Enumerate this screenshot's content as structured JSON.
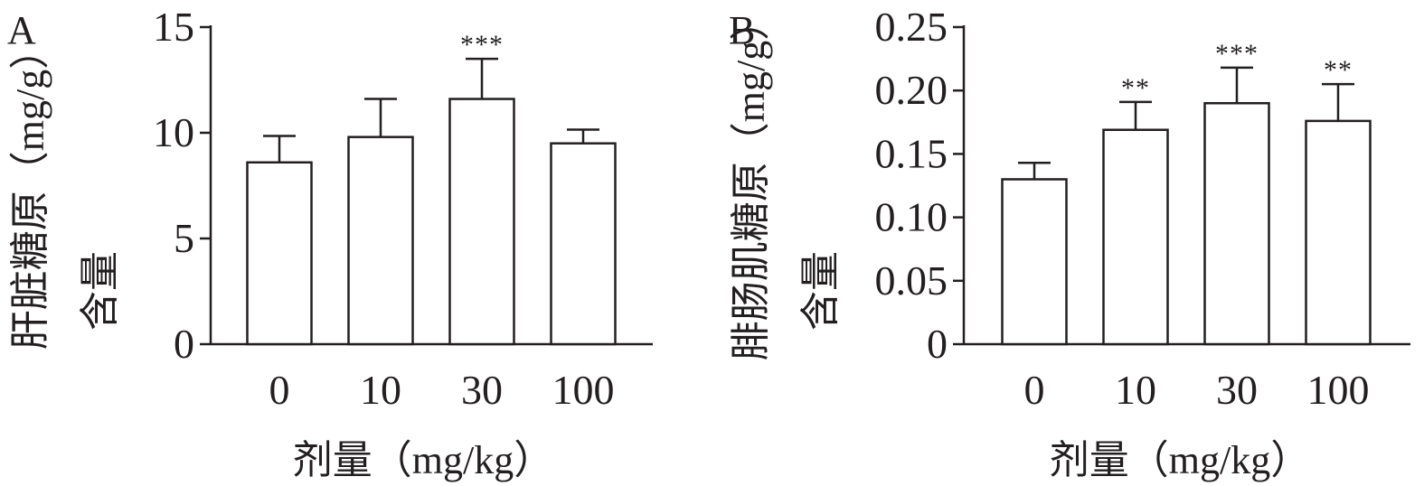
{
  "chart_data": [
    {
      "panel": "A",
      "type": "bar",
      "categories": [
        "0",
        "10",
        "30",
        "100"
      ],
      "values": [
        8.6,
        9.8,
        11.6,
        9.5
      ],
      "errors": [
        1.25,
        1.8,
        1.9,
        0.65
      ],
      "significance": [
        "",
        "",
        "***",
        ""
      ],
      "ylabel": "肝脏糖原含量（mg/g）",
      "xlabel": "剂量（mg/kg）",
      "ylim": [
        0,
        15
      ],
      "yticks": [
        0,
        5,
        10,
        15
      ],
      "ytick_labels": [
        "0",
        "5",
        "10",
        "15"
      ],
      "grid": false
    },
    {
      "panel": "B",
      "type": "bar",
      "categories": [
        "0",
        "10",
        "30",
        "100"
      ],
      "values": [
        0.13,
        0.169,
        0.19,
        0.176
      ],
      "errors": [
        0.013,
        0.022,
        0.028,
        0.029
      ],
      "significance": [
        "",
        "**",
        "***",
        "**"
      ],
      "ylabel": "腓肠肌糖原含量（mg/g）",
      "xlabel": "剂量（mg/kg）",
      "ylim": [
        0,
        0.25
      ],
      "yticks": [
        0,
        0.05,
        0.1,
        0.15,
        0.2,
        0.25
      ],
      "ytick_labels": [
        "0",
        "0.05",
        "0.10",
        "0.15",
        "0.20",
        "0.25"
      ],
      "grid": false
    }
  ]
}
